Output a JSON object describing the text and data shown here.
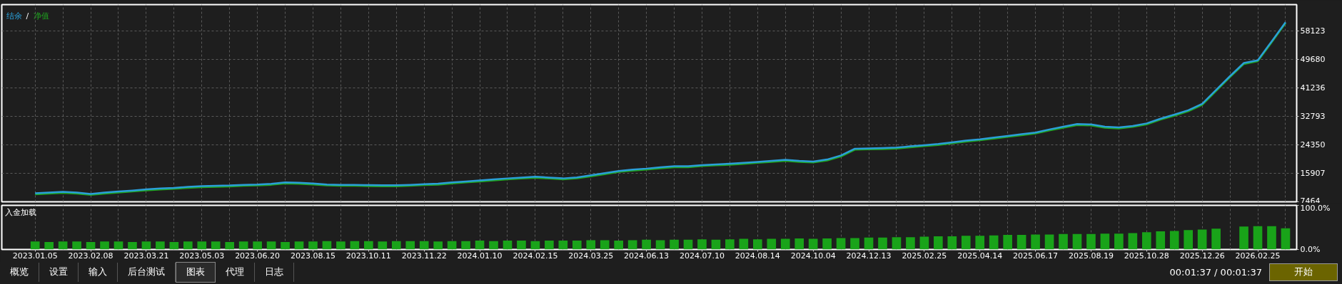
{
  "chart_data": [
    {
      "type": "line",
      "legend": "top left",
      "grid": true,
      "tick_labels": "y",
      "line_style": "solid",
      "marker": "none",
      "annotations": [
        "/"
      ],
      "categories": [
        null,
        null,
        null,
        null,
        null,
        null,
        null,
        null,
        null,
        null,
        null,
        null,
        null,
        null,
        null,
        null,
        null,
        null,
        null,
        null,
        null,
        null,
        null,
        null,
        null,
        null,
        null,
        null,
        null,
        null,
        null,
        null,
        null,
        null,
        null,
        null,
        null,
        null,
        null,
        null,
        null,
        null,
        null,
        null,
        null,
        null,
        null,
        null,
        null,
        null,
        null,
        null,
        null,
        null,
        null,
        null,
        null,
        null,
        null,
        null,
        null,
        null,
        null,
        null,
        null,
        null,
        null,
        null,
        null,
        null,
        null,
        null,
        null,
        null,
        null,
        null,
        null,
        null,
        null,
        null,
        null,
        null,
        null,
        null,
        null,
        null,
        null,
        null,
        null,
        null,
        null
      ],
      "series": [
        {
          "name": "净值",
          "color": "#1fa31f",
          "values": [
            9700,
            9900,
            10100,
            9900,
            9500,
            9900,
            10200,
            10500,
            10850,
            11100,
            11300,
            11600,
            11800,
            11900,
            12000,
            12200,
            12300,
            12500,
            12900,
            12800,
            12600,
            12300,
            12200,
            12200,
            12100,
            12050,
            12050,
            12200,
            12400,
            12550,
            12900,
            13200,
            13500,
            13800,
            14100,
            14350,
            14600,
            14350,
            14100,
            14400,
            15000,
            15650,
            16300,
            16700,
            17000,
            17400,
            17700,
            17700,
            18050,
            18250,
            18450,
            18700,
            19000,
            19300,
            19600,
            19300,
            19100,
            19700,
            20900,
            22900,
            23000,
            23100,
            23250,
            23600,
            23950,
            24300,
            24800,
            25300,
            25700,
            26200,
            26700,
            27200,
            27700,
            28600,
            29400,
            30200,
            30100,
            29400,
            29200,
            29650,
            30400,
            31800,
            33000,
            34300,
            36200,
            40300,
            44400,
            48300,
            49100,
            54700,
            60400
          ]
        },
        {
          "name": "结余",
          "color": "#2a9fd8",
          "values": [
            10000,
            10200,
            10400,
            10200,
            9800,
            10200,
            10500,
            10800,
            11150,
            11400,
            11600,
            11900,
            12100,
            12200,
            12300,
            12500,
            12600,
            12800,
            13200,
            13100,
            12900,
            12600,
            12500,
            12500,
            12400,
            12350,
            12350,
            12500,
            12700,
            12850,
            13200,
            13500,
            13800,
            14100,
            14400,
            14650,
            14900,
            14650,
            14400,
            14700,
            15300,
            15950,
            16600,
            17000,
            17300,
            17700,
            18000,
            18000,
            18350,
            18550,
            18750,
            19000,
            19300,
            19600,
            19900,
            19600,
            19400,
            20000,
            21200,
            23200,
            23300,
            23400,
            23550,
            23900,
            24250,
            24600,
            25100,
            25600,
            26000,
            26500,
            27000,
            27500,
            28000,
            28900,
            29700,
            30500,
            30400,
            29700,
            29500,
            29950,
            30700,
            32100,
            33300,
            34600,
            36500,
            40600,
            44700,
            48600,
            49400,
            55000,
            60700
          ]
        }
      ],
      "ylim": [
        7464,
        65900
      ],
      "yticks": [
        7464,
        15907,
        24350,
        32793,
        41236,
        49680,
        58123
      ]
    },
    {
      "type": "bar",
      "title": "入金加载",
      "grid": "x",
      "color": "#19a319",
      "categories": [
        "2023.01.05",
        null,
        null,
        null,
        "2023.02.08",
        null,
        null,
        null,
        "2023.03.21",
        null,
        null,
        null,
        "2023.05.03",
        null,
        null,
        null,
        "2023.06.20",
        null,
        null,
        null,
        "2023.08.15",
        null,
        null,
        null,
        "2023.10.11",
        null,
        null,
        null,
        "2023.11.22",
        null,
        null,
        null,
        "2024.01.10",
        null,
        null,
        null,
        "2024.02.15",
        null,
        null,
        null,
        "2024.03.25",
        null,
        null,
        null,
        "2024.06.13",
        null,
        null,
        null,
        "2024.07.10",
        null,
        null,
        null,
        "2024.08.14",
        null,
        null,
        null,
        "2024.10.04",
        null,
        null,
        null,
        "2024.12.13",
        null,
        null,
        null,
        "2025.02.25",
        null,
        null,
        null,
        "2025.04.14",
        null,
        null,
        null,
        "2025.06.17",
        null,
        null,
        null,
        "2025.08.19",
        null,
        null,
        null,
        "2025.10.28",
        null,
        null,
        null,
        "2025.12.26",
        null,
        null,
        null,
        "2026.02.25",
        null,
        null
      ],
      "values": [
        18,
        17,
        18,
        18,
        17,
        18,
        18,
        17,
        18,
        18,
        17,
        18,
        18,
        18,
        17,
        18,
        18,
        18,
        17,
        18,
        18,
        19,
        18,
        19,
        19,
        18,
        19,
        19,
        19,
        18,
        19,
        19,
        20,
        19,
        20,
        20,
        19,
        20,
        20,
        20,
        21,
        21,
        20,
        21,
        22,
        21,
        22,
        22,
        23,
        22,
        23,
        24,
        23,
        24,
        24,
        25,
        24,
        25,
        26,
        26,
        27,
        27,
        28,
        28,
        29,
        30,
        30,
        31,
        31,
        32,
        33,
        33,
        34,
        34,
        35,
        35,
        35,
        36,
        36,
        37,
        39,
        41,
        42,
        44,
        45,
        47,
        null,
        52,
        53,
        53,
        48
      ],
      "ylim": [
        0,
        100
      ],
      "yticks": [
        {
          "value": 0,
          "label": "0.0%"
        },
        {
          "value": 100,
          "label": "100.0%"
        }
      ],
      "annotations": [
        "概览",
        "设置",
        "输入",
        "后台测试",
        "图表",
        "代理",
        "日志",
        "00:01:37 / 00:01:37",
        "开始"
      ]
    }
  ]
}
